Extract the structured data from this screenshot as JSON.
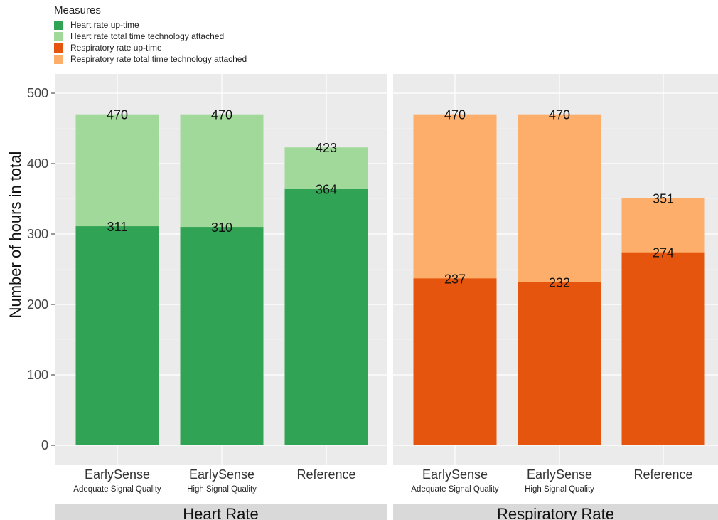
{
  "legend": {
    "title": "Measures",
    "items": [
      {
        "label": "Heart rate up-time",
        "color": "#31a354"
      },
      {
        "label": "Heart rate total time technology attached",
        "color": "#a1d99b"
      },
      {
        "label": "Respiratory rate up-time",
        "color": "#e6550d"
      },
      {
        "label": "Respiratory rate total time technology attached",
        "color": "#fdae6b"
      }
    ]
  },
  "chart_data": {
    "type": "bar",
    "ylabel": "Number of hours in total",
    "ylim": [
      0,
      500
    ],
    "yticks": [
      0,
      100,
      200,
      300,
      400,
      500
    ],
    "grid": true,
    "legend_position": "top-left",
    "panels": [
      {
        "name": "Heart Rate",
        "categories": [
          {
            "label": "EarlySense",
            "sublabel": "Adequate Signal Quality"
          },
          {
            "label": "EarlySense",
            "sublabel": "High Signal Quality"
          },
          {
            "label": "Reference",
            "sublabel": ""
          }
        ],
        "series": [
          {
            "name": "Heart rate total time technology attached",
            "color": "#a1d99b",
            "values": [
              470,
              470,
              423
            ]
          },
          {
            "name": "Heart rate up-time",
            "color": "#31a354",
            "values": [
              311,
              310,
              364
            ]
          }
        ]
      },
      {
        "name": "Respiratory Rate",
        "categories": [
          {
            "label": "EarlySense",
            "sublabel": "Adequate Signal Quality"
          },
          {
            "label": "EarlySense",
            "sublabel": "High Signal Quality"
          },
          {
            "label": "Reference",
            "sublabel": ""
          }
        ],
        "series": [
          {
            "name": "Respiratory rate total time technology attached",
            "color": "#fdae6b",
            "values": [
              470,
              470,
              351
            ]
          },
          {
            "name": "Respiratory rate up-time",
            "color": "#e6550d",
            "values": [
              237,
              232,
              274
            ]
          }
        ]
      }
    ]
  }
}
